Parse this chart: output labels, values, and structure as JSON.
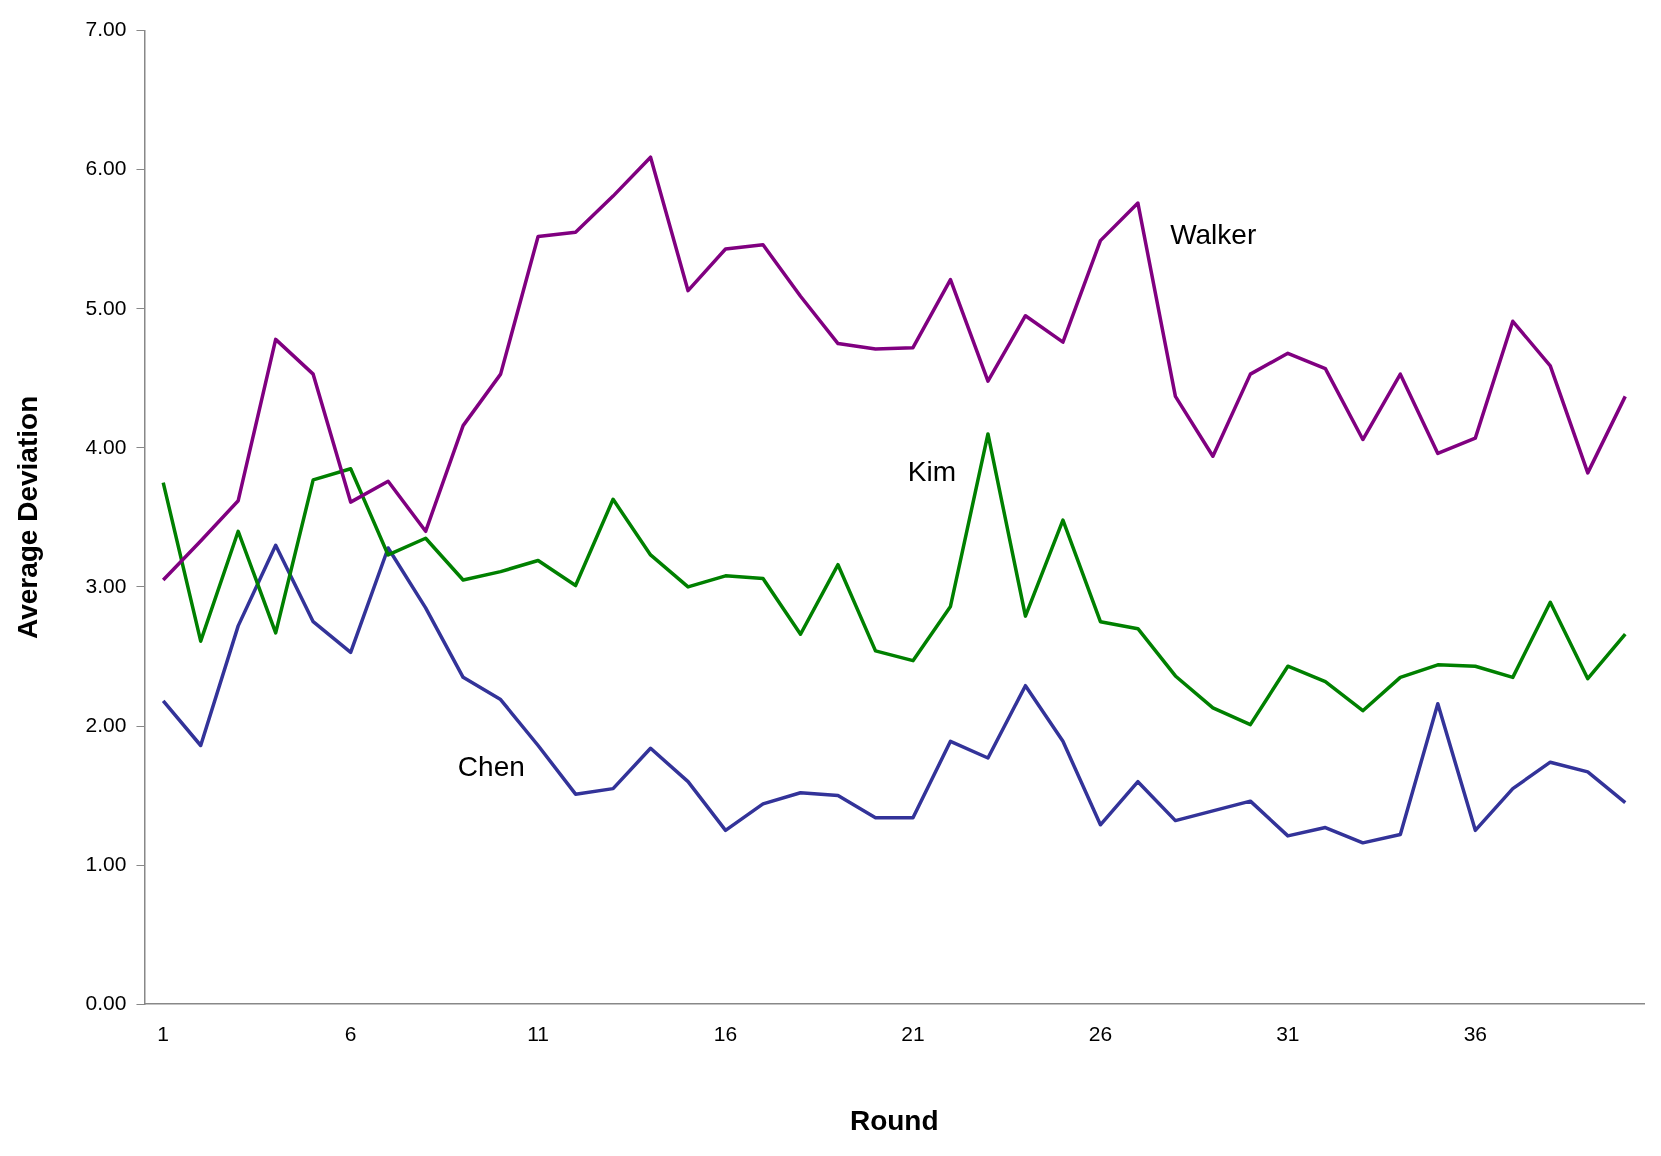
{
  "chart_data": {
    "type": "line",
    "xlabel": "Round",
    "ylabel": "Average Deviation",
    "categories": [
      "1",
      null,
      null,
      null,
      null,
      "6",
      null,
      null,
      null,
      null,
      "11",
      null,
      null,
      null,
      null,
      "16",
      null,
      null,
      null,
      null,
      "21",
      null,
      null,
      null,
      null,
      "26",
      null,
      null,
      null,
      null,
      "31",
      null,
      null,
      null,
      null,
      "36",
      null,
      null,
      null,
      null
    ],
    "ylim": [
      0,
      7
    ],
    "yticks": [
      {
        "value": 0,
        "label": "0.00"
      },
      {
        "value": 1,
        "label": "1.00"
      },
      {
        "value": 2,
        "label": "2.00"
      },
      {
        "value": 3,
        "label": "3.00"
      },
      {
        "value": 4,
        "label": "4.00"
      },
      {
        "value": 5,
        "label": "5.00"
      },
      {
        "value": 6,
        "label": "6.00"
      },
      {
        "value": 7,
        "label": "7.00"
      }
    ],
    "grid": false,
    "legend": false,
    "marker": "none",
    "line_style": "solid",
    "series": [
      {
        "name": "Walker",
        "color": "#800080",
        "values": [
          3.05,
          3.33,
          3.62,
          4.78,
          4.53,
          3.61,
          3.76,
          3.4,
          4.16,
          4.53,
          5.52,
          5.55,
          5.81,
          6.09,
          5.13,
          5.43,
          5.46,
          5.09,
          4.75,
          4.71,
          4.72,
          5.21,
          4.48,
          4.95,
          4.76,
          5.49,
          5.76,
          4.37,
          3.94,
          4.53,
          4.68,
          4.57,
          4.06,
          4.53,
          3.96,
          4.07,
          4.91,
          4.59,
          3.82,
          4.37
        ]
      },
      {
        "name": "Kim",
        "color": "#008000",
        "values": [
          3.75,
          2.61,
          3.4,
          2.67,
          3.77,
          3.85,
          3.23,
          3.35,
          3.05,
          3.11,
          3.19,
          3.01,
          3.63,
          3.23,
          3.0,
          3.08,
          3.06,
          2.66,
          3.16,
          2.54,
          2.47,
          2.86,
          4.1,
          2.79,
          3.48,
          2.75,
          2.7,
          2.36,
          2.13,
          2.01,
          2.43,
          2.32,
          2.11,
          2.35,
          2.44,
          2.43,
          2.35,
          2.89,
          2.34,
          2.66
        ]
      },
      {
        "name": "Chen",
        "color": "#333399",
        "values": [
          2.18,
          1.86,
          2.72,
          3.3,
          2.75,
          2.53,
          3.28,
          2.85,
          2.35,
          2.19,
          1.86,
          1.51,
          1.55,
          1.84,
          1.6,
          1.25,
          1.44,
          1.52,
          1.5,
          1.34,
          1.34,
          1.89,
          1.77,
          2.29,
          1.89,
          1.29,
          1.6,
          1.32,
          1.39,
          1.46,
          1.21,
          1.27,
          1.16,
          1.22,
          2.16,
          1.25,
          1.55,
          1.74,
          1.67,
          1.45
        ]
      }
    ]
  }
}
